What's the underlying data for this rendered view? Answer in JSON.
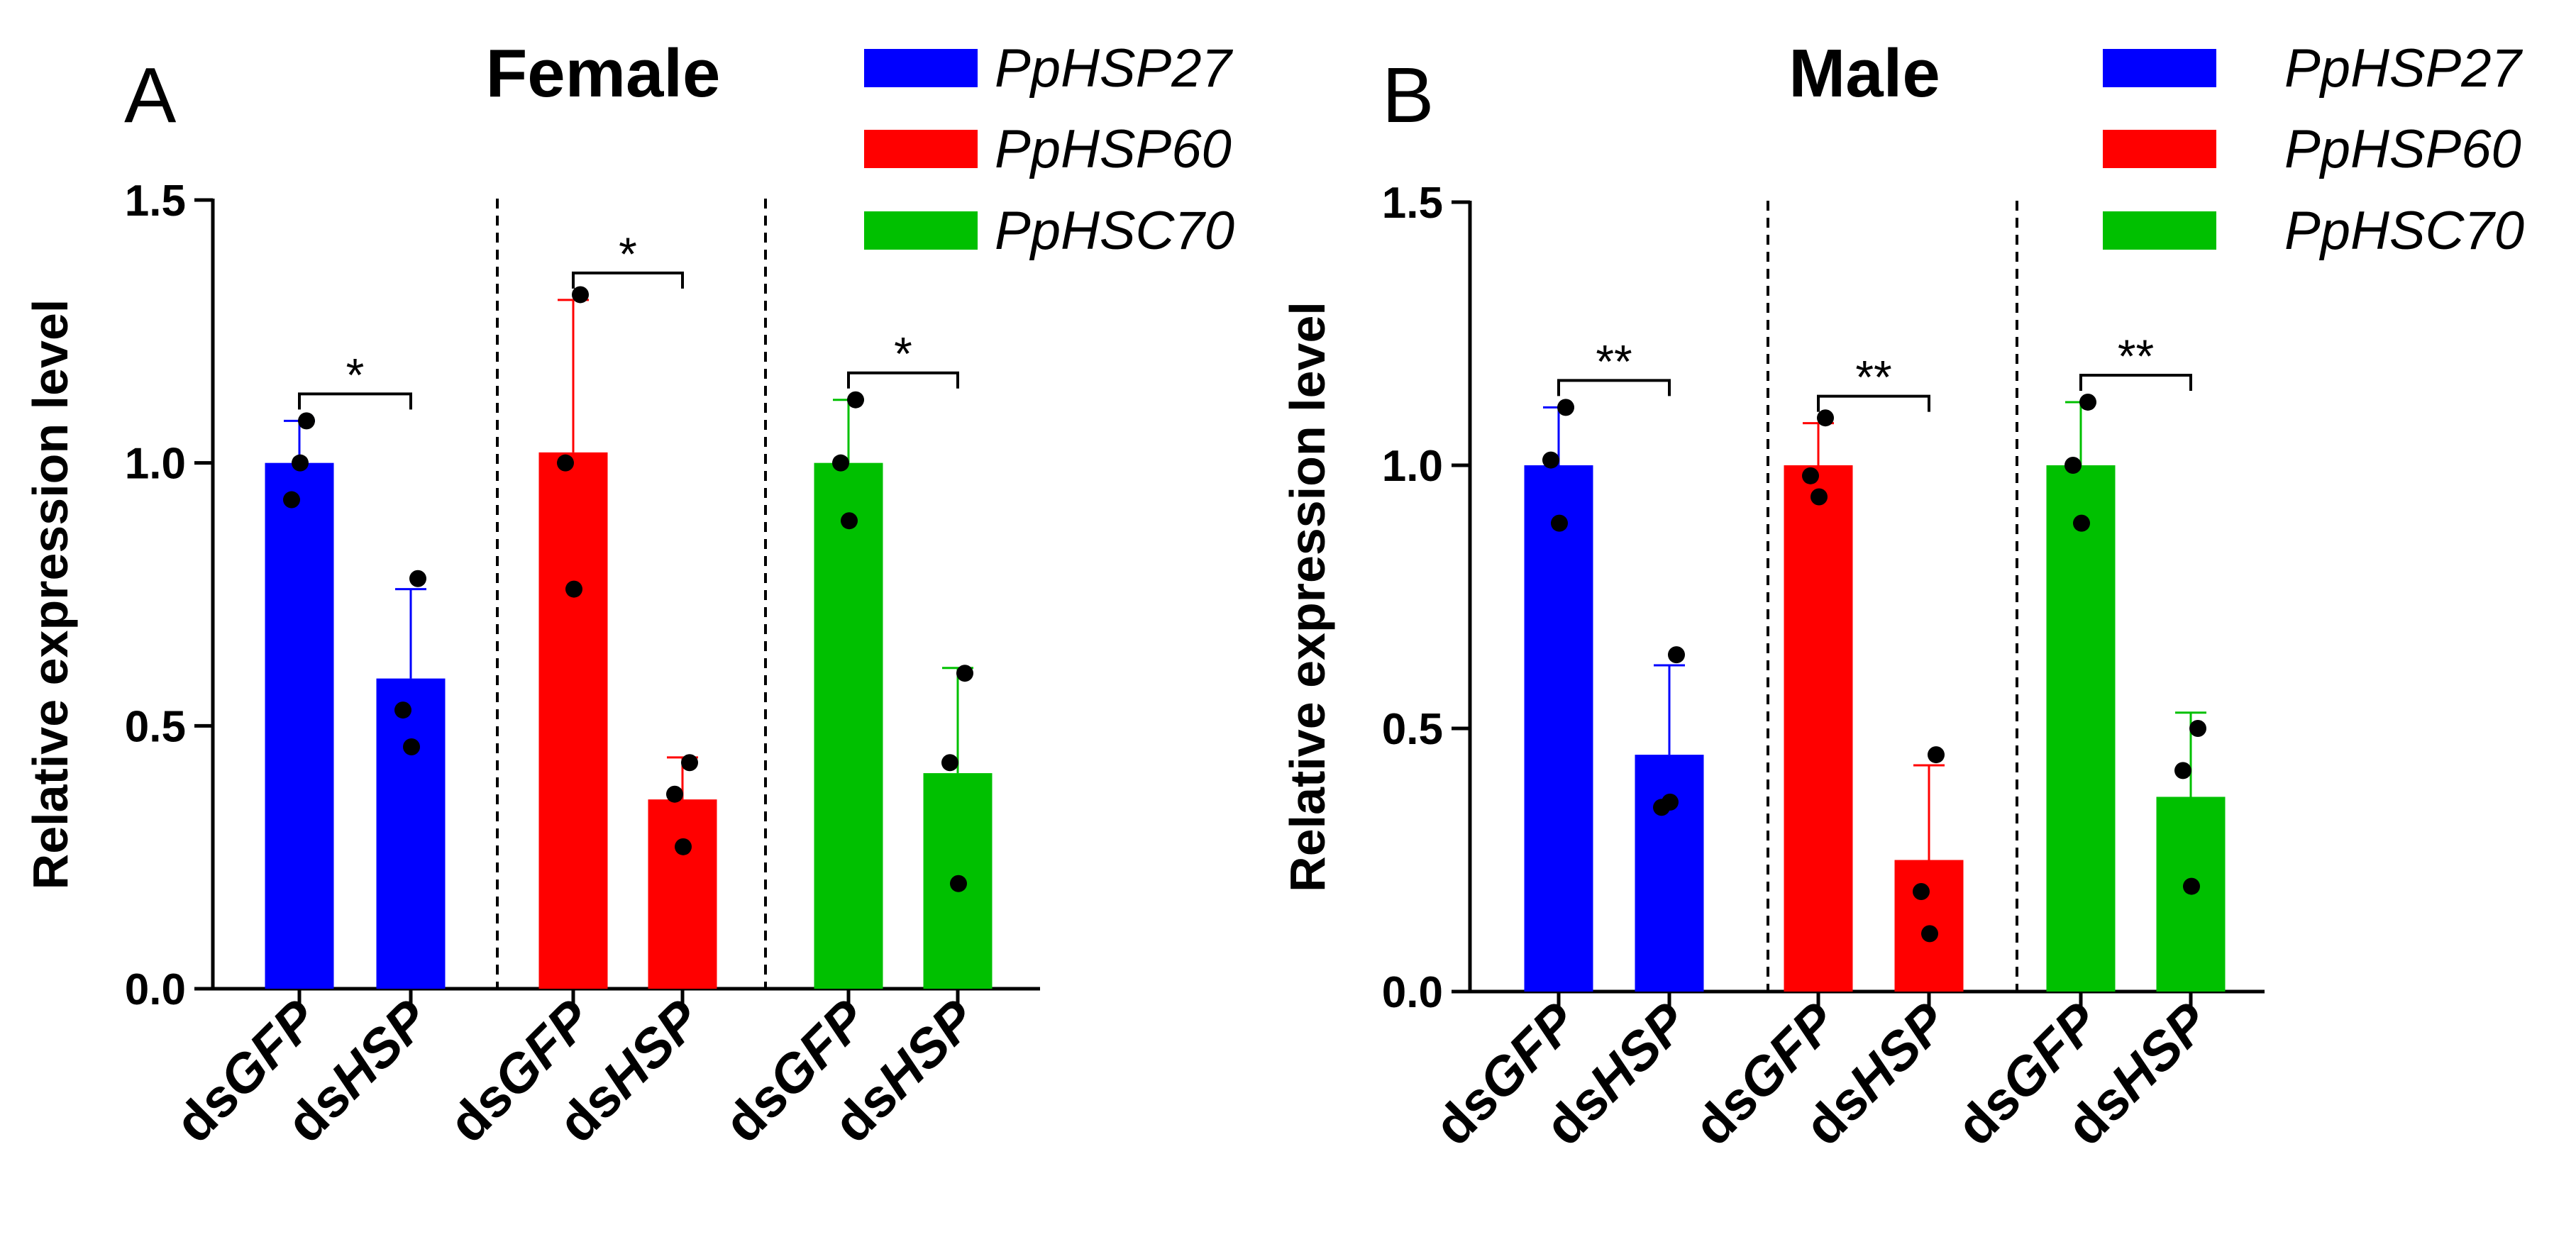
{
  "colors": {
    "PpHSP27": "#0000ff",
    "PpHSP60": "#ff0000",
    "PpHSC70": "#00c000",
    "axis": "#000000"
  },
  "legend": [
    "PpHSP27",
    "PpHSP60",
    "PpHSC70"
  ],
  "chart_data": [
    {
      "type": "bar",
      "panel_letter": "A",
      "title": "Female",
      "ylabel": "Relative expression level",
      "xlabel": "",
      "ylim": [
        0,
        1.5
      ],
      "yticks": [
        0.0,
        0.5,
        1.0,
        1.5
      ],
      "ytick_labels": [
        "0.0",
        "0.5",
        "1.0",
        "1.5"
      ],
      "category_prefix": "ds",
      "categories": [
        "GFP",
        "HSP"
      ],
      "groups": [
        {
          "gene": "PpHSP27",
          "significance": "*",
          "bars": [
            {
              "treatment": "GFP",
              "mean": 1.0,
              "sd": 0.08,
              "points": [
                1.08,
                0.93,
                1.0
              ]
            },
            {
              "treatment": "HSP",
              "mean": 0.59,
              "sd": 0.17,
              "points": [
                0.78,
                0.53,
                0.46
              ]
            }
          ]
        },
        {
          "gene": "PpHSP60",
          "significance": "*",
          "bars": [
            {
              "treatment": "GFP",
              "mean": 1.02,
              "sd": 0.29,
              "points": [
                1.32,
                1.0,
                0.76
              ]
            },
            {
              "treatment": "HSP",
              "mean": 0.36,
              "sd": 0.08,
              "points": [
                0.43,
                0.37,
                0.27
              ]
            }
          ]
        },
        {
          "gene": "PpHSC70",
          "significance": "*",
          "bars": [
            {
              "treatment": "GFP",
              "mean": 1.0,
              "sd": 0.12,
              "points": [
                1.12,
                1.0,
                0.89
              ]
            },
            {
              "treatment": "HSP",
              "mean": 0.41,
              "sd": 0.2,
              "points": [
                0.6,
                0.43,
                0.2
              ]
            }
          ]
        }
      ]
    },
    {
      "type": "bar",
      "panel_letter": "B",
      "title": "Male",
      "ylabel": "Relative expression level",
      "xlabel": "",
      "ylim": [
        0,
        1.5
      ],
      "yticks": [
        0.0,
        0.5,
        1.0,
        1.5
      ],
      "ytick_labels": [
        "0.0",
        "0.5",
        "1.0",
        "1.5"
      ],
      "category_prefix": "ds",
      "categories": [
        "GFP",
        "HSP"
      ],
      "groups": [
        {
          "gene": "PpHSP27",
          "significance": "**",
          "bars": [
            {
              "treatment": "GFP",
              "mean": 1.0,
              "sd": 0.11,
              "points": [
                1.11,
                1.01,
                0.89
              ]
            },
            {
              "treatment": "HSP",
              "mean": 0.45,
              "sd": 0.17,
              "points": [
                0.64,
                0.35,
                0.36
              ]
            }
          ]
        },
        {
          "gene": "PpHSP60",
          "significance": "**",
          "bars": [
            {
              "treatment": "GFP",
              "mean": 1.0,
              "sd": 0.08,
              "points": [
                1.09,
                0.98,
                0.94
              ]
            },
            {
              "treatment": "HSP",
              "mean": 0.25,
              "sd": 0.18,
              "points": [
                0.45,
                0.19,
                0.11
              ]
            }
          ]
        },
        {
          "gene": "PpHSC70",
          "significance": "**",
          "bars": [
            {
              "treatment": "GFP",
              "mean": 1.0,
              "sd": 0.12,
              "points": [
                1.12,
                1.0,
                0.89
              ]
            },
            {
              "treatment": "HSP",
              "mean": 0.37,
              "sd": 0.16,
              "points": [
                0.5,
                0.42,
                0.2
              ]
            }
          ]
        }
      ]
    }
  ]
}
